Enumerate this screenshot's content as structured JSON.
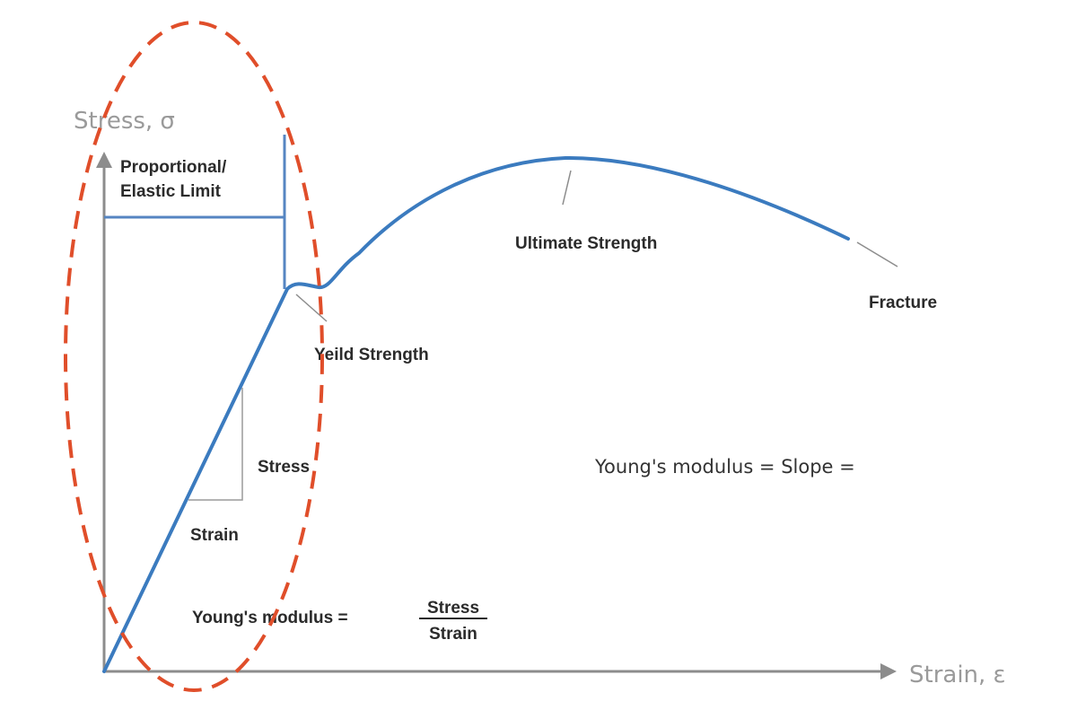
{
  "axes": {
    "y_label": "Stress, σ",
    "x_label": "Strain, ε"
  },
  "labels": {
    "proportional_line1": "Proportional/",
    "proportional_line2": "Elastic Limit",
    "ultimate_strength": "Ultimate Strength",
    "fracture": "Fracture",
    "yield_strength": "Yeild Strength",
    "stress": "Stress",
    "strain": "Strain"
  },
  "formulas": {
    "slope": "Young's modulus = Slope =",
    "modulus_prefix": "Young's modulus =",
    "numerator": "Stress",
    "denominator": "Strain"
  },
  "colors": {
    "curve": "#3b7bbf",
    "limit_lines": "#5585c2",
    "axis": "#8c8c8c",
    "highlight": "#e04e2a",
    "leader": "#8c8c8c"
  }
}
